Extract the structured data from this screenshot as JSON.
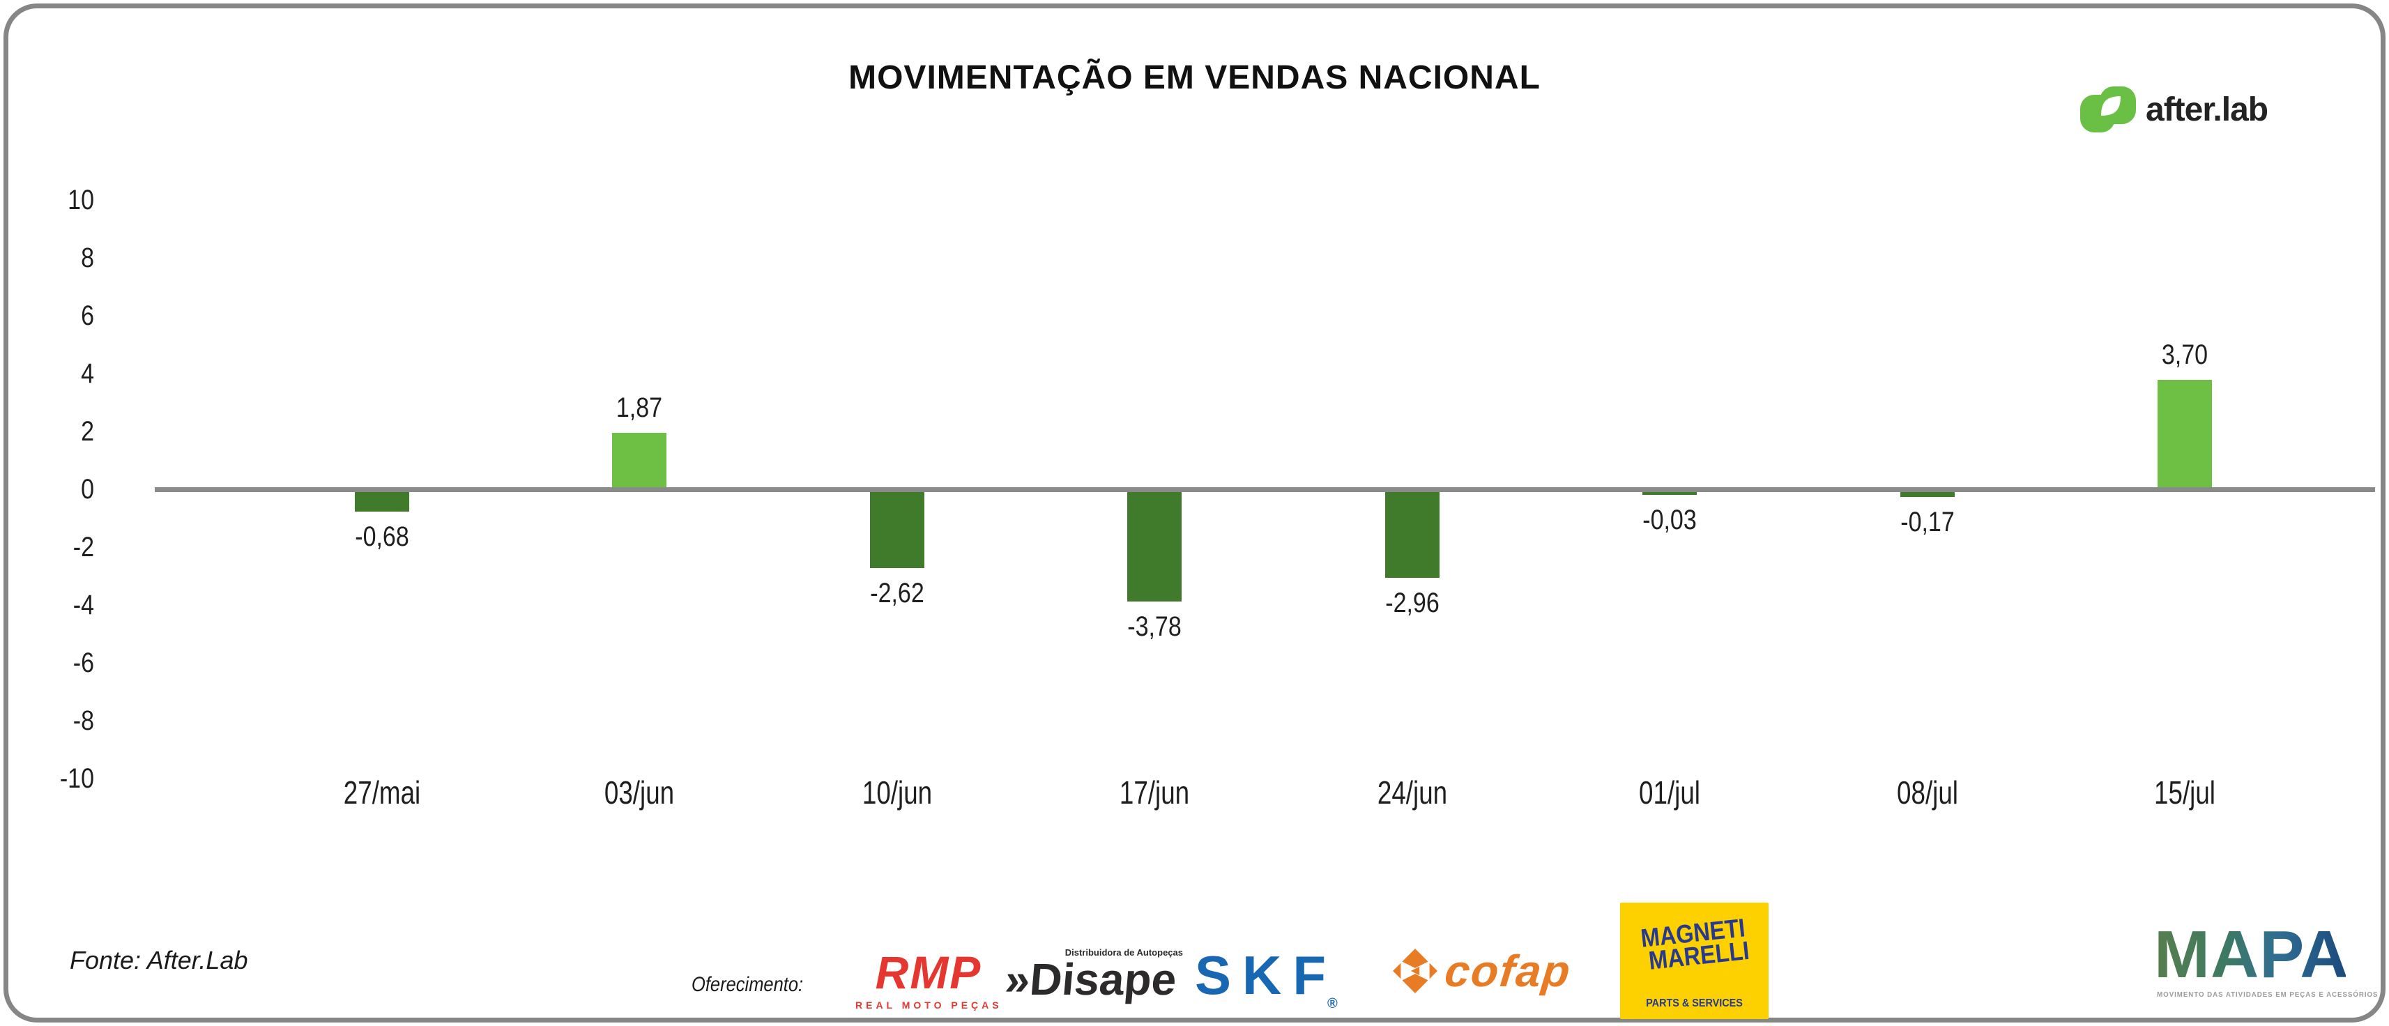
{
  "brand": {
    "name": "after.lab",
    "icon": "afterlab-leaf-icon",
    "green": "#6abf45",
    "text_color": "#232323"
  },
  "chart_data": {
    "type": "bar",
    "title": "MOVIMENTAÇÃO EM VENDAS NACIONAL",
    "categories": [
      "27/mai",
      "03/jun",
      "10/jun",
      "17/jun",
      "24/jun",
      "01/jul",
      "08/jul",
      "15/jul"
    ],
    "values": [
      -0.68,
      1.87,
      -2.62,
      -3.78,
      -2.96,
      -0.03,
      -0.17,
      3.7
    ],
    "value_labels": [
      "-0,68",
      "1,87",
      "-2,62",
      "-3,78",
      "-2,96",
      "-0,03",
      "-0,17",
      "3,70"
    ],
    "xlabel": "",
    "ylabel": "",
    "ylim": [
      -10,
      10
    ],
    "yticks": [
      10,
      8,
      6,
      4,
      2,
      0,
      -2,
      -4,
      -6,
      -8,
      -10
    ],
    "grid": false,
    "legend": null,
    "colors": {
      "positive": "#6ec045",
      "negative": "#3f7b2a",
      "axis_line": "#8a8a8a"
    }
  },
  "footer": {
    "source": "Fonte: After.Lab",
    "sponsor_label": "Oferecimento:",
    "sponsors": [
      {
        "name": "RMP",
        "subtitle": "REAL MOTO PEÇAS",
        "color": "#e63630"
      },
      {
        "name": "Disape",
        "prefix": "»",
        "subtitle": "Distribuidora de Autopeças",
        "color": "#2d2a2b"
      },
      {
        "name": "SKF",
        "registered": "®",
        "color": "#1767b2"
      },
      {
        "name": "cofap",
        "color": "#e87c24"
      },
      {
        "name": "MAGNETI MARELLI",
        "line1": "MAGNETI",
        "line2": "MARELLI",
        "subtitle": "PARTS & SERVICES",
        "bg": "#fdd000",
        "color": "#283a8f"
      },
      {
        "name": "MAPA",
        "subtitle": "MOVIMENTO DAS ATIVIDADES EM PEÇAS E ACESSÓRIOS"
      }
    ]
  }
}
